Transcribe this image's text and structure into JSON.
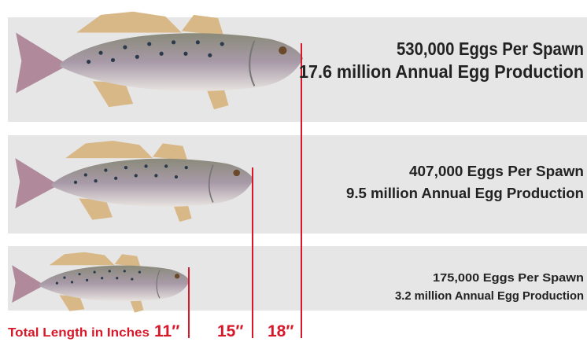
{
  "rows": [
    {
      "eggs_per_spawn": "530,000 Eggs Per Spawn",
      "annual": "17.6 million Annual Egg Production"
    },
    {
      "eggs_per_spawn": "407,000 Eggs Per Spawn",
      "annual": "9.5 million Annual Egg Production"
    },
    {
      "eggs_per_spawn": "175,000 Eggs Per Spawn",
      "annual": "3.2 million Annual Egg Production"
    }
  ],
  "length_axis": {
    "label": "Total Length in Inches",
    "ticks": [
      "11″",
      "15″",
      "18″"
    ]
  }
}
